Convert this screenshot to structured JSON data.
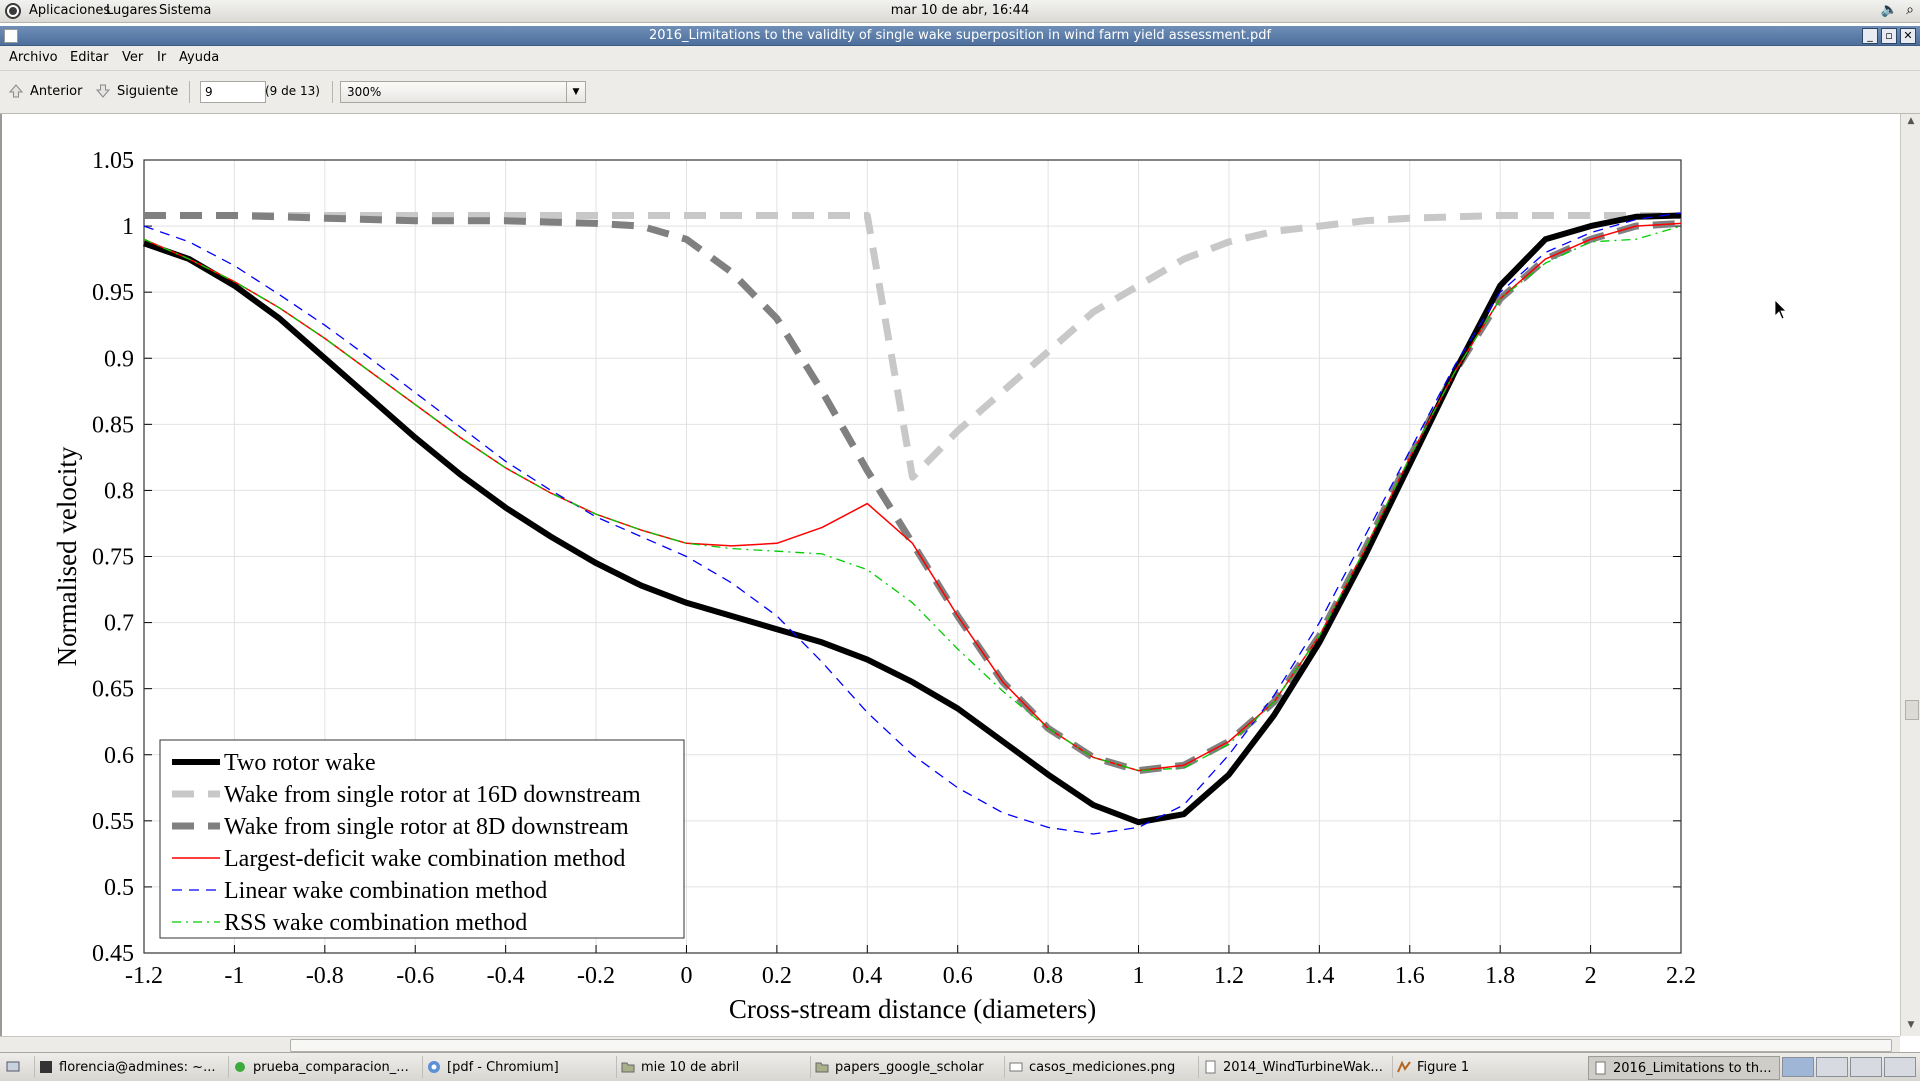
{
  "top_panel": {
    "menus": [
      "Aplicaciones",
      "Lugares",
      "Sistema"
    ],
    "clock": "mar 10 de abr, 16:44"
  },
  "window": {
    "title": "2016_Limitations to the validity of single wake superposition in wind farm yield assessment.pdf"
  },
  "menu_bar": [
    "Archivo",
    "Editar",
    "Ver",
    "Ir",
    "Ayuda"
  ],
  "toolbar": {
    "prev_label": "Anterior",
    "next_label": "Siguiente",
    "page_value": "9",
    "page_count": "(9 de 13)",
    "zoom_value": "300%"
  },
  "chart_data": {
    "type": "line",
    "title": "",
    "xlabel": "Cross-stream distance (diameters)",
    "ylabel": "Normalised velocity",
    "xlim": [
      -1.2,
      2.2
    ],
    "ylim": [
      0.45,
      1.05
    ],
    "xticks": [
      "-1.2",
      "-1",
      "-0.8",
      "-0.6",
      "-0.4",
      "-0.2",
      "0",
      "0.2",
      "0.4",
      "0.6",
      "0.8",
      "1",
      "1.2",
      "1.4",
      "1.6",
      "1.8",
      "2",
      "2.2"
    ],
    "yticks": [
      "0.45",
      "0.5",
      "0.55",
      "0.6",
      "0.65",
      "0.7",
      "0.75",
      "0.8",
      "0.85",
      "0.9",
      "0.95",
      "1",
      "1.05"
    ],
    "grid": true,
    "legend_position": "bottom-left",
    "x": [
      -1.2,
      -1.1,
      -1.0,
      -0.9,
      -0.8,
      -0.7,
      -0.6,
      -0.5,
      -0.4,
      -0.3,
      -0.2,
      -0.1,
      0.0,
      0.1,
      0.2,
      0.3,
      0.4,
      0.5,
      0.6,
      0.7,
      0.8,
      0.9,
      1.0,
      1.1,
      1.2,
      1.3,
      1.4,
      1.5,
      1.6,
      1.7,
      1.8,
      1.9,
      2.0,
      2.1,
      2.2
    ],
    "series": [
      {
        "name": "Two rotor wake",
        "color": "#000000",
        "style": "solid-thick",
        "values": [
          0.987,
          0.975,
          0.955,
          0.93,
          0.9,
          0.87,
          0.84,
          0.812,
          0.787,
          0.765,
          0.745,
          0.728,
          0.715,
          0.705,
          0.695,
          0.685,
          0.672,
          0.655,
          0.635,
          0.61,
          0.585,
          0.562,
          0.549,
          0.555,
          0.585,
          0.63,
          0.685,
          0.75,
          0.82,
          0.89,
          0.955,
          0.99,
          1.0,
          1.007,
          1.008
        ]
      },
      {
        "name": "Wake from single rotor at 16D downstream",
        "color": "#c8c8c8",
        "style": "dashed-thick",
        "values": [
          1.008,
          1.008,
          1.008,
          1.008,
          1.008,
          1.008,
          1.008,
          1.008,
          1.008,
          1.008,
          1.008,
          1.008,
          1.008,
          1.008,
          1.008,
          1.008,
          1.008,
          0.81,
          0.845,
          0.875,
          0.905,
          0.935,
          0.955,
          0.975,
          0.988,
          0.996,
          1.0,
          1.004,
          1.006,
          1.007,
          1.008,
          1.008,
          1.008,
          1.008,
          1.008
        ]
      },
      {
        "name": "Wake from single rotor at 8D downstream",
        "color": "#808080",
        "style": "dashed-thick",
        "values": [
          1.008,
          1.008,
          1.008,
          1.007,
          1.006,
          1.005,
          1.004,
          1.004,
          1.004,
          1.003,
          1.002,
          1.0,
          0.99,
          0.965,
          0.93,
          0.875,
          0.815,
          0.76,
          0.705,
          0.655,
          0.62,
          0.598,
          0.588,
          0.592,
          0.61,
          0.64,
          0.69,
          0.755,
          0.825,
          0.89,
          0.945,
          0.975,
          0.99,
          1.0,
          1.002
        ]
      },
      {
        "name": "Largest-deficit wake combination method",
        "color": "#ff0000",
        "style": "solid",
        "values": [
          0.99,
          0.975,
          0.958,
          0.938,
          0.915,
          0.89,
          0.865,
          0.84,
          0.817,
          0.798,
          0.782,
          0.77,
          0.76,
          0.758,
          0.76,
          0.772,
          0.79,
          0.76,
          0.705,
          0.655,
          0.62,
          0.598,
          0.588,
          0.592,
          0.61,
          0.64,
          0.69,
          0.755,
          0.825,
          0.89,
          0.945,
          0.975,
          0.99,
          1.0,
          1.002
        ]
      },
      {
        "name": "Linear wake combination method",
        "color": "#0000ff",
        "style": "dashed",
        "values": [
          1.0,
          0.988,
          0.97,
          0.948,
          0.925,
          0.9,
          0.874,
          0.848,
          0.822,
          0.8,
          0.78,
          0.765,
          0.75,
          0.73,
          0.705,
          0.67,
          0.632,
          0.6,
          0.575,
          0.556,
          0.545,
          0.54,
          0.545,
          0.562,
          0.6,
          0.645,
          0.7,
          0.765,
          0.83,
          0.895,
          0.95,
          0.98,
          0.995,
          1.005,
          1.01
        ]
      },
      {
        "name": "RSS wake combination method",
        "color": "#00cc00",
        "style": "dashdot",
        "values": [
          0.99,
          0.975,
          0.958,
          0.938,
          0.915,
          0.89,
          0.865,
          0.84,
          0.817,
          0.798,
          0.782,
          0.77,
          0.76,
          0.756,
          0.754,
          0.752,
          0.74,
          0.715,
          0.68,
          0.648,
          0.62,
          0.598,
          0.588,
          0.59,
          0.608,
          0.64,
          0.69,
          0.755,
          0.825,
          0.89,
          0.945,
          0.972,
          0.988,
          0.99,
          1.0
        ]
      }
    ]
  },
  "taskbar": {
    "tasks": [
      "florencia@admines: ~...",
      "prueba_comparacion_...",
      "[pdf - Chromium]",
      "mie 10 de abril",
      "papers_google_scholar",
      "casos_mediciones.png",
      "2014_WindTurbineWak...",
      "Figure 1",
      "2016_Limitations to th..."
    ]
  }
}
